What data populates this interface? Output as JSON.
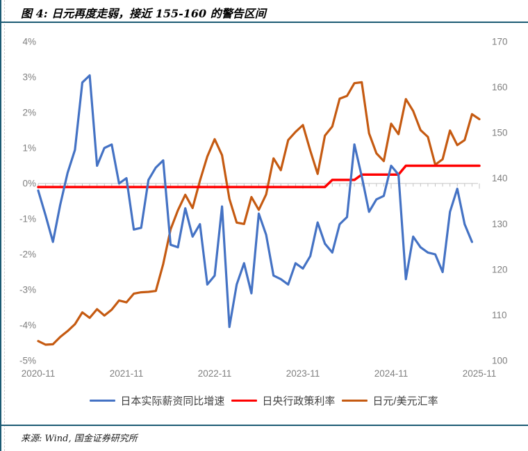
{
  "figure": {
    "title": "图 4: 日元再度走弱，接近 155-160 的警告区间",
    "source": "来源: Wind, 国金证券研究所"
  },
  "chart_data": {
    "type": "line",
    "title": "日元再度走弱，接近 155-160 的警告区间",
    "grid": "zero-line-only",
    "legend_position": "bottom",
    "x_axis": {
      "monthly_start": "2020-11",
      "months_per_tick": 12,
      "tick_labels": [
        "2020-11",
        "2021-11",
        "2022-11",
        "2023-11",
        "2024-11",
        "2025-11"
      ]
    },
    "y_axis_left": {
      "unit": "%",
      "max": 4,
      "min": -5,
      "tick_labels": [
        "4%",
        "3%",
        "2%",
        "1%",
        "0%",
        "-1%",
        "-2%",
        "-3%",
        "-4%",
        "-5%"
      ]
    },
    "y_axis_right": {
      "unit": "JPY per USD",
      "max": 170,
      "min": 100,
      "tick_labels": [
        "170",
        "160",
        "150",
        "140",
        "130",
        "120",
        "110",
        "100"
      ]
    },
    "series": [
      {
        "name": "日本实际薪资同比增速",
        "axis": "left",
        "color": "#4472C4",
        "values": [
          -0.2,
          -0.9,
          -1.65,
          -0.6,
          0.3,
          0.95,
          2.85,
          3.05,
          0.5,
          1.0,
          1.1,
          0.0,
          0.15,
          -1.3,
          -1.25,
          0.1,
          0.45,
          0.65,
          -1.73,
          -1.8,
          -0.7,
          -1.5,
          -1.15,
          -2.85,
          -2.6,
          -0.65,
          -4.05,
          -2.85,
          -2.25,
          -3.1,
          -0.85,
          -1.45,
          -2.6,
          -2.7,
          -2.85,
          -2.25,
          -2.4,
          -2.05,
          -1.1,
          -1.7,
          -1.95,
          -1.15,
          -0.95,
          1.1,
          0.2,
          -0.8,
          -0.45,
          -0.35,
          0.5,
          0.25,
          -2.7,
          -1.5,
          -1.8,
          -1.95,
          -2.0,
          -2.5,
          -0.8,
          -0.15,
          -1.15,
          -1.65
        ]
      },
      {
        "name": "日央行政策利率",
        "axis": "left",
        "color": "#FF0000",
        "values": [
          -0.1,
          -0.1,
          -0.1,
          -0.1,
          -0.1,
          -0.1,
          -0.1,
          -0.1,
          -0.1,
          -0.1,
          -0.1,
          -0.1,
          -0.1,
          -0.1,
          -0.1,
          -0.1,
          -0.1,
          -0.1,
          -0.1,
          -0.1,
          -0.1,
          -0.1,
          -0.1,
          -0.1,
          -0.1,
          -0.1,
          -0.1,
          -0.1,
          -0.1,
          -0.1,
          -0.1,
          -0.1,
          -0.1,
          -0.1,
          -0.1,
          -0.1,
          -0.1,
          -0.1,
          -0.1,
          -0.1,
          0.1,
          0.1,
          0.1,
          0.1,
          0.25,
          0.25,
          0.25,
          0.25,
          0.25,
          0.25,
          0.5,
          0.5,
          0.5,
          0.5,
          0.5,
          0.5,
          0.5,
          0.5,
          0.5,
          0.5,
          0.5
        ]
      },
      {
        "name": "日元/美元汇率",
        "axis": "right",
        "color": "#C55A11",
        "values": [
          104.3,
          103.5,
          103.6,
          105.2,
          106.5,
          108.0,
          110.6,
          109.4,
          111.3,
          109.9,
          111.2,
          113.2,
          112.8,
          114.7,
          115.0,
          115.1,
          115.3,
          121.2,
          128.8,
          133.0,
          136.4,
          133.5,
          139.5,
          144.8,
          148.6,
          145.1,
          135.5,
          130.3,
          130.0,
          135.9,
          133.1,
          136.5,
          144.4,
          141.8,
          148.4,
          150.2,
          151.7,
          146.1,
          141.0,
          149.4,
          151.4,
          157.5,
          158.1,
          160.9,
          161.1,
          149.9,
          145.5,
          143.8,
          152.0,
          149.7,
          157.4,
          154.8,
          150.6,
          149.1,
          143.0,
          144.2,
          150.5,
          147.3,
          148.4,
          154.1,
          153.0
        ]
      }
    ]
  }
}
